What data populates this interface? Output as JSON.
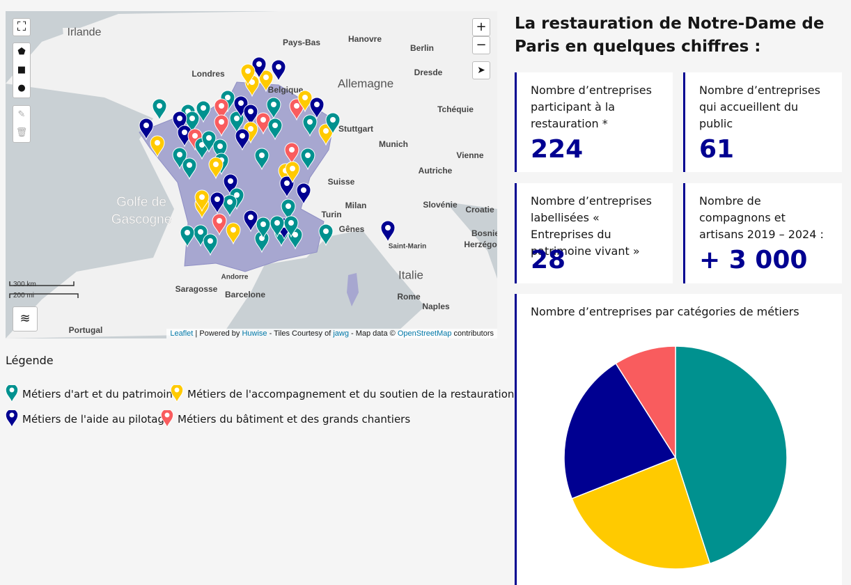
{
  "map": {
    "zoom_in": "+",
    "zoom_out": "−",
    "labels": [
      "Irlande",
      "Pays-Bas",
      "Hanovre",
      "Berlin",
      "Londres",
      "Belgique",
      "Allemagne",
      "Dresde",
      "Tchéquie",
      "Stuttgart",
      "Munich",
      "Vienne",
      "Autriche",
      "Suisse",
      "Golfe de",
      "Gascogne",
      "Slovénie",
      "Croatie",
      "Milan",
      "Turin",
      "Gênes",
      "Bosnie",
      "Herzégo",
      "Saint-Marin",
      "Italie",
      "Rome",
      "Naples",
      "Saragosse",
      "Barcelone",
      "Andorre",
      "Portugal"
    ],
    "scale": [
      "300 km",
      "200 mi"
    ],
    "attribution": [
      "Leaflet",
      " | Powered by ",
      "Huwise",
      " - Tiles Courtesy of ",
      "jawg",
      " - Map data © ",
      "OpenStreetMap",
      " contributors"
    ]
  },
  "legend": {
    "title": "Légende"
  },
  "header": {
    "title": "La restauration de Notre-Dame de Paris en quelques chiffres :"
  },
  "cards": [
    {
      "label": "Nombre d’entreprises participant à la restauration *",
      "value": 224
    },
    {
      "label": "Nombre d’entreprises qui accueillent du public",
      "value": 61
    },
    {
      "label": "Nombre d’entreprises labellisées « Entreprises du patrimoine vivant »",
      "value": 28
    },
    {
      "label": "Nombre de compagnons et artisans 2019 – 2024 :",
      "value": "+ 3 000"
    }
  ],
  "chart_data": {
    "type": "pie",
    "title": "Nombre d’entreprises par catégories de métiers",
    "categories": [
      "Métiers d'art et du patrimoine",
      "Métiers de l'accompagnement et du soutien de la restauration",
      "Métiers de l'aide au pilotage",
      "Métiers du bâtiment et des grands chantiers"
    ],
    "values": [
      45,
      24,
      22,
      9
    ],
    "colors": [
      "#00918f",
      "#ffca00",
      "#000091",
      "#f95c5e"
    ]
  }
}
